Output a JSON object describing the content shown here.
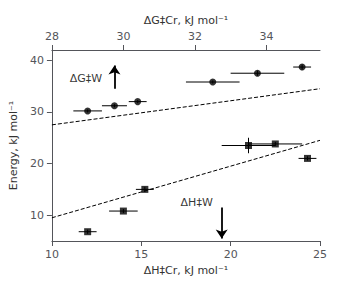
{
  "chart_data": {
    "type": "scatter",
    "xlabel": "ΔH‡Cr, kJ mol⁻¹",
    "x2label": "ΔG‡Cr, kJ mol⁻¹",
    "ylabel": "Energy, kJ mol⁻¹",
    "xlim": [
      10,
      25
    ],
    "xticks": [
      10,
      15,
      20,
      25
    ],
    "x2lim": [
      28.0,
      35.5
    ],
    "x2ticks": [
      28,
      30,
      32,
      34
    ],
    "ylim": [
      5,
      42
    ],
    "yticks": [
      10,
      20,
      30,
      40
    ],
    "grid": false,
    "color": "#000000",
    "series": [
      {
        "type": "line",
        "line_style": "dashed",
        "x": [
          10,
          25
        ],
        "values": [
          27.5,
          34.5
        ]
      },
      {
        "type": "line",
        "line_style": "dashed",
        "x": [
          10,
          25
        ],
        "values": [
          9.5,
          24.5
        ]
      },
      {
        "type": "scatter",
        "marker": "circle",
        "x": [
          12.0,
          13.5,
          14.8,
          19.0,
          21.5,
          24.0
        ],
        "values": [
          30.2,
          31.2,
          32.0,
          35.8,
          37.5,
          38.7
        ],
        "xerr": [
          0.8,
          0.7,
          0.5,
          1.5,
          1.5,
          0.5
        ],
        "yerr": [
          0.3,
          0.3,
          0.3,
          0.3,
          0.5,
          0.5
        ]
      },
      {
        "type": "scatter",
        "marker": "square",
        "x": [
          12.0,
          14.0,
          15.2,
          21.0,
          22.5,
          24.3
        ],
        "values": [
          6.8,
          10.8,
          15.0,
          23.5,
          23.8,
          21.0
        ],
        "xerr": [
          0.5,
          0.8,
          0.5,
          1.5,
          1.5,
          0.5
        ],
        "yerr": [
          0.4,
          0.4,
          0.5,
          1.5,
          0.4,
          0.4
        ]
      }
    ],
    "annotations": [
      {
        "text": "ΔG‡W",
        "x": 11.0,
        "y": 36.5,
        "arrow": {
          "x": 13.5,
          "y_start": 34.5,
          "y_end": 39.0
        }
      },
      {
        "text": "ΔH‡W",
        "x": 17.2,
        "y": 12.5,
        "arrow": {
          "x": 19.5,
          "y_start": 11.5,
          "y_end": 5.5
        }
      }
    ]
  }
}
